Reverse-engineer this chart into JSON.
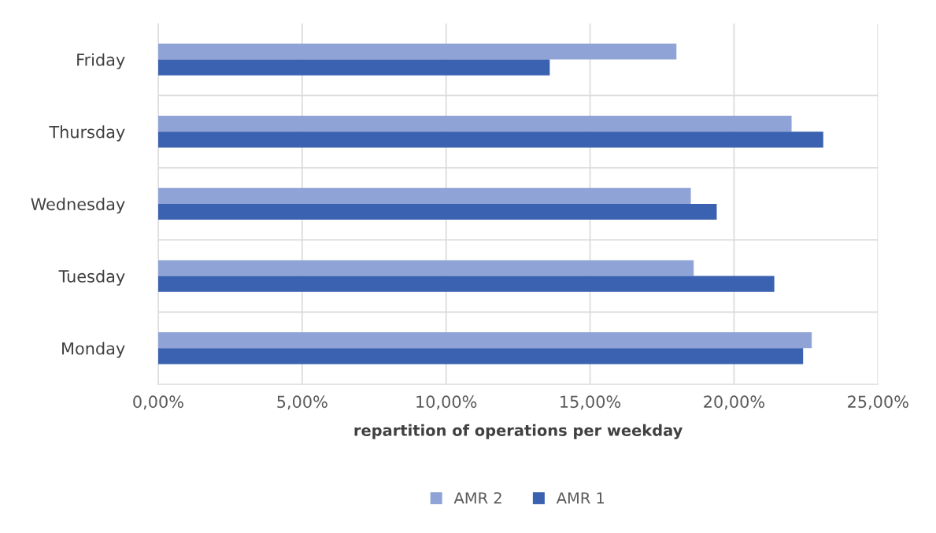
{
  "chart_data": {
    "type": "bar",
    "orientation": "horizontal",
    "xlabel": "repartition of operations per weekday",
    "categories": [
      "Friday",
      "Thursday",
      "Wednesday",
      "Tuesday",
      "Monday"
    ],
    "series": [
      {
        "name": "AMR 2",
        "color": "#8fa3d6",
        "values": [
          18.0,
          22.0,
          18.5,
          18.6,
          22.7
        ]
      },
      {
        "name": "AMR 1",
        "color": "#3a62b0",
        "values": [
          13.6,
          23.1,
          19.4,
          21.4,
          22.4
        ]
      }
    ],
    "xlim": [
      0,
      25
    ],
    "xticks": [
      {
        "value": 0,
        "label": "0,00%"
      },
      {
        "value": 5,
        "label": "5,00%"
      },
      {
        "value": 10,
        "label": "10,00%"
      },
      {
        "value": 15,
        "label": "15,00%"
      },
      {
        "value": 20,
        "label": "20,00%"
      },
      {
        "value": 25,
        "label": "25,00%"
      }
    ],
    "grid": "x",
    "legend": "bottom"
  }
}
